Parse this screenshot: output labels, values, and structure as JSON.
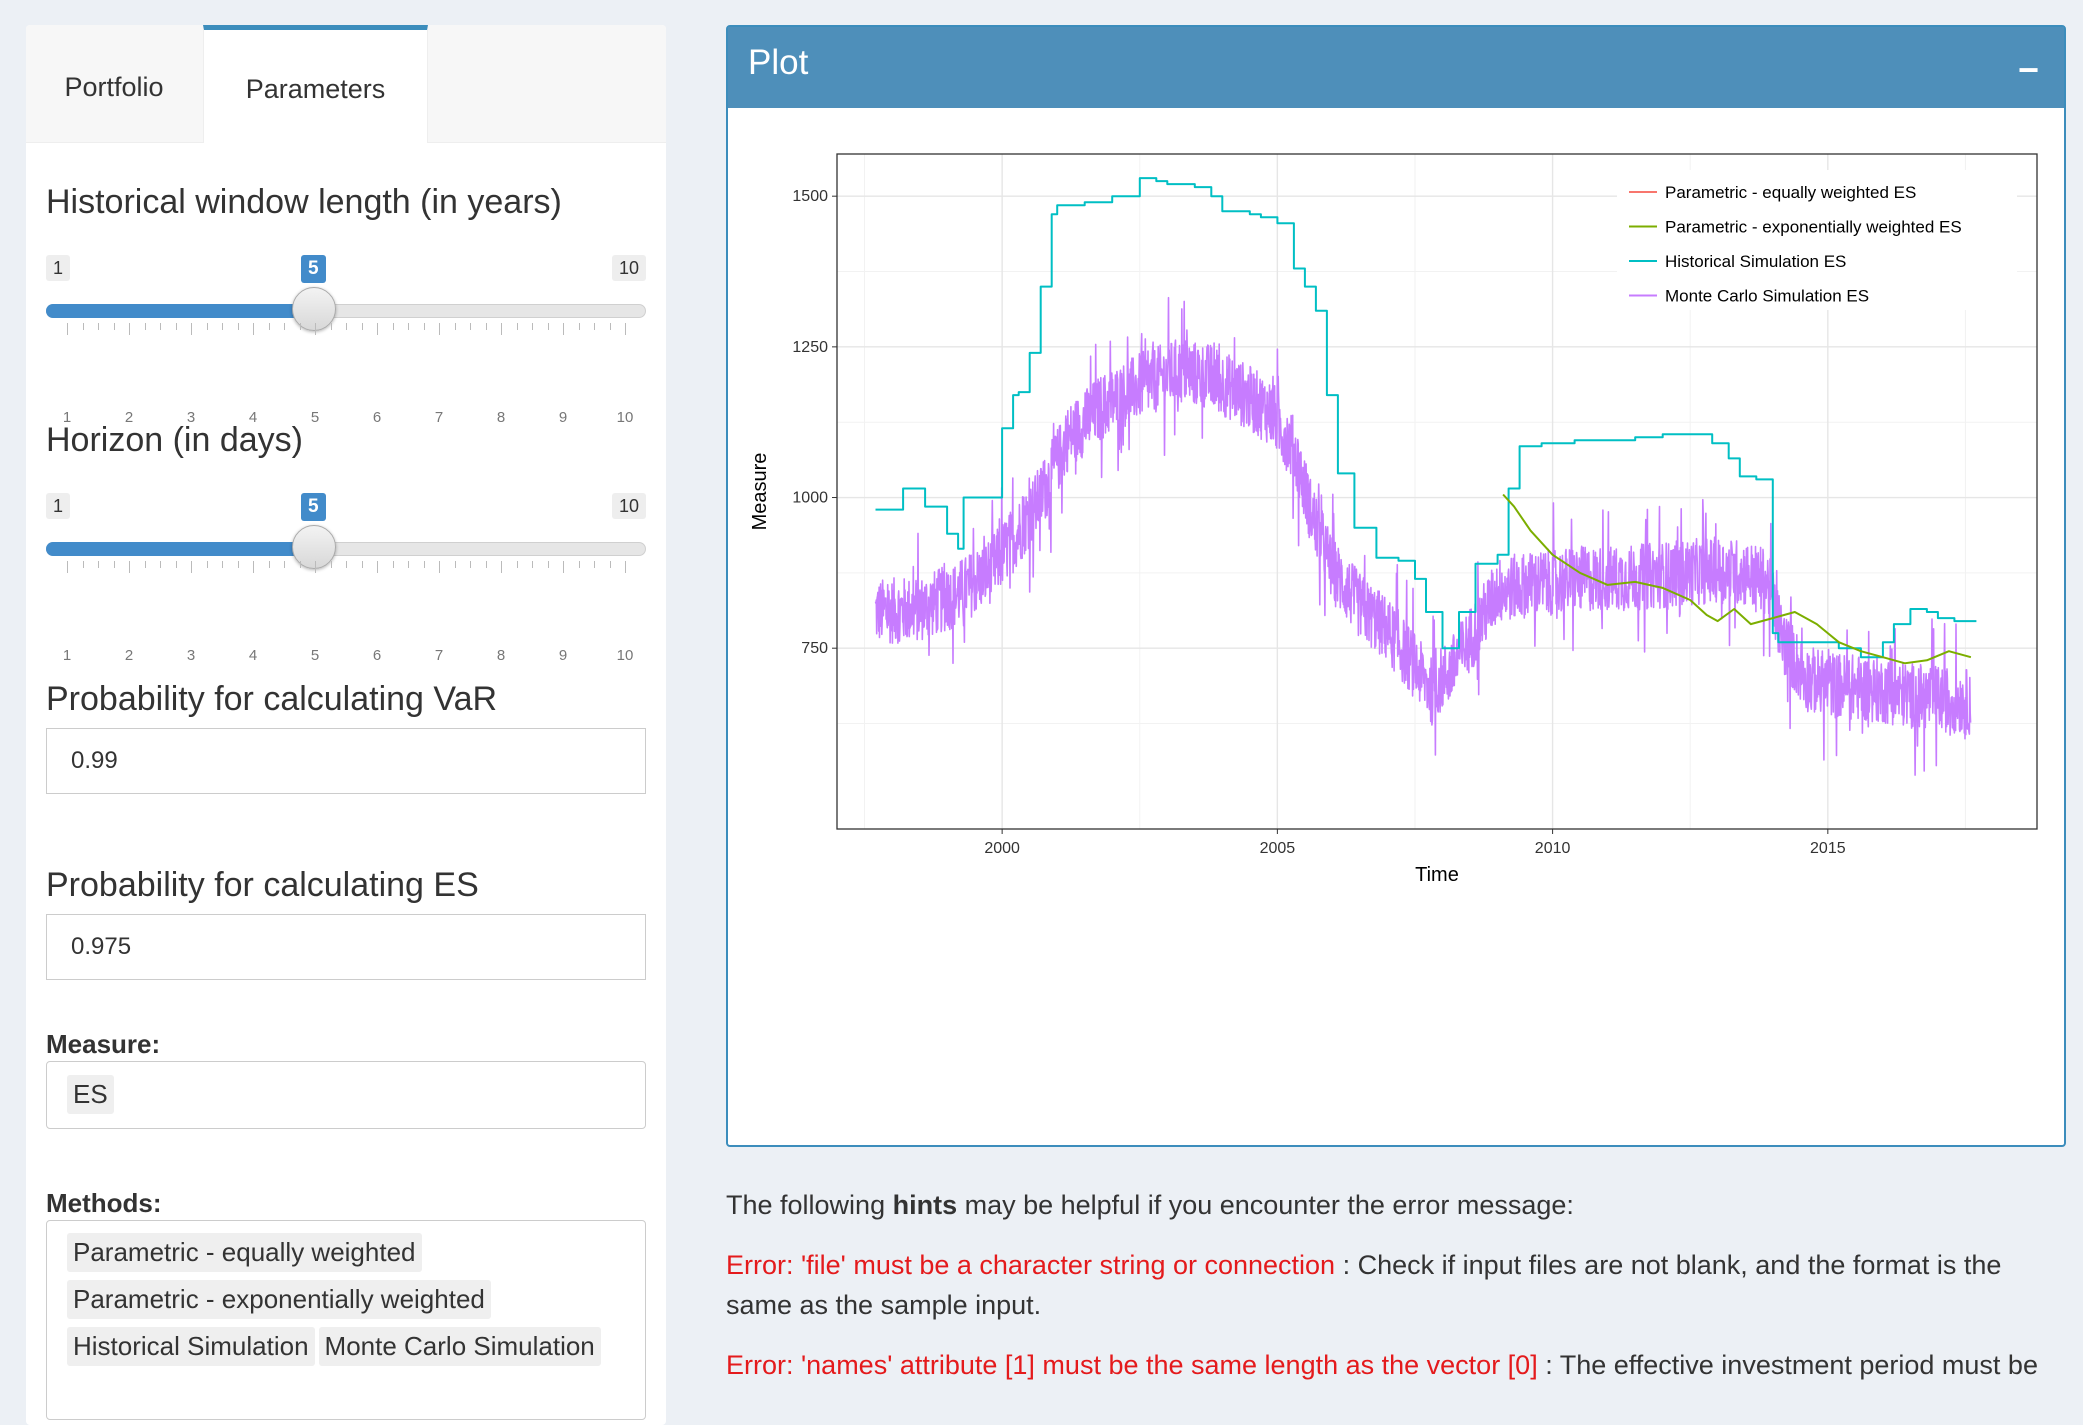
{
  "sidebar": {
    "tabs": [
      {
        "label": "Portfolio",
        "active": false
      },
      {
        "label": "Parameters",
        "active": true
      }
    ],
    "window_slider": {
      "label": "Historical window length (in years)",
      "min": "1",
      "max": "10",
      "value": "5",
      "ticks": [
        "1",
        "2",
        "3",
        "4",
        "5",
        "6",
        "7",
        "8",
        "9",
        "10"
      ]
    },
    "horizon_slider": {
      "label": "Horizon (in days)",
      "min": "1",
      "max": "10",
      "value": "5",
      "ticks": [
        "1",
        "2",
        "3",
        "4",
        "5",
        "6",
        "7",
        "8",
        "9",
        "10"
      ]
    },
    "var_prob": {
      "label": "Probability for calculating VaR",
      "value": "0.99"
    },
    "es_prob": {
      "label": "Probability for calculating ES",
      "value": "0.975"
    },
    "measure": {
      "label": "Measure:",
      "selected": "ES"
    },
    "methods": {
      "label": "Methods:",
      "selected": [
        "Parametric - equally weighted",
        "Parametric - exponentially weighted",
        "Historical Simulation",
        "Monte Carlo Simulation"
      ]
    }
  },
  "plot_box": {
    "title": "Plot",
    "collapse_label": "−"
  },
  "chart_data": {
    "type": "line",
    "xlabel": "Time",
    "ylabel": "Measure",
    "xlim": [
      1997.0,
      2018.8
    ],
    "ylim": [
      450,
      1570
    ],
    "x_ticks": [
      2000,
      2005,
      2010,
      2015
    ],
    "y_ticks": [
      750,
      1000,
      1250,
      1500
    ],
    "grid": true,
    "legend_position": "top-right",
    "series": [
      {
        "name": "Parametric - equally weighted ES",
        "color": "#f8766d",
        "x": [],
        "y": []
      },
      {
        "name": "Parametric - exponentially weighted ES",
        "color": "#7cae00",
        "x": [
          2009.1,
          2009.3,
          2009.6,
          2010.0,
          2010.5,
          2011.0,
          2011.5,
          2012.0,
          2012.5,
          2012.8,
          2013.0,
          2013.3,
          2013.6,
          2014.0,
          2014.4,
          2014.8,
          2015.2,
          2015.6,
          2016.0,
          2016.4,
          2016.8,
          2017.2,
          2017.6
        ],
        "y": [
          1005,
          985,
          945,
          905,
          875,
          855,
          860,
          850,
          830,
          805,
          795,
          815,
          790,
          800,
          810,
          790,
          760,
          745,
          735,
          725,
          730,
          745,
          735
        ]
      },
      {
        "name": "Historical Simulation ES",
        "color": "#00bfc4",
        "x": [
          1997.7,
          1998.2,
          1998.5,
          1998.6,
          1999.0,
          1999.2,
          1999.3,
          1999.5,
          2000.0,
          2000.2,
          2000.3,
          2000.5,
          2000.7,
          2000.9,
          2001.0,
          2001.5,
          2002.0,
          2002.3,
          2002.5,
          2002.8,
          2003.0,
          2003.5,
          2003.8,
          2004.0,
          2004.5,
          2004.7,
          2005.0,
          2005.3,
          2005.5,
          2005.7,
          2005.9,
          2006.1,
          2006.4,
          2006.8,
          2007.2,
          2007.5,
          2007.7,
          2008.0,
          2008.3,
          2008.6,
          2009.0,
          2009.2,
          2009.4,
          2009.8,
          2010.4,
          2011.0,
          2011.5,
          2012.0,
          2012.5,
          2012.9,
          2013.2,
          2013.4,
          2013.7,
          2014.0,
          2014.1,
          2014.4,
          2014.8,
          2015.2,
          2015.6,
          2016.0,
          2016.2,
          2016.5,
          2016.8,
          2017.0,
          2017.3,
          2017.7
        ],
        "y": [
          980,
          1015,
          1015,
          985,
          940,
          915,
          1000,
          1000,
          1115,
          1170,
          1175,
          1240,
          1350,
          1470,
          1485,
          1490,
          1500,
          1500,
          1530,
          1525,
          1520,
          1515,
          1500,
          1475,
          1470,
          1465,
          1455,
          1380,
          1350,
          1310,
          1170,
          1040,
          950,
          900,
          895,
          865,
          810,
          750,
          810,
          890,
          905,
          1015,
          1085,
          1090,
          1095,
          1095,
          1100,
          1105,
          1105,
          1090,
          1065,
          1035,
          1030,
          775,
          760,
          760,
          760,
          750,
          735,
          760,
          790,
          815,
          810,
          800,
          795,
          795
        ]
      },
      {
        "name": "Monte Carlo Simulation ES",
        "color": "#c77cff",
        "x": [
          1997.7,
          1998.5,
          1999.2,
          1999.8,
          2000.2,
          2000.7,
          2001.2,
          2001.8,
          2002.5,
          2003.2,
          2003.8,
          2004.4,
          2004.9,
          2005.3,
          2005.6,
          2006.0,
          2006.5,
          2007.0,
          2007.5,
          2007.8,
          2008.2,
          2008.6,
          2009.0,
          2009.5,
          2010.0,
          2010.6,
          2011.2,
          2011.8,
          2012.4,
          2013.0,
          2013.5,
          2013.9,
          2014.2,
          2014.6,
          2015.0,
          2015.5,
          2016.0,
          2016.6,
          2017.2,
          2017.6
        ],
        "y": [
          810,
          815,
          840,
          880,
          930,
          1000,
          1100,
          1150,
          1185,
          1210,
          1200,
          1170,
          1140,
          1080,
          980,
          880,
          820,
          780,
          720,
          680,
          720,
          780,
          845,
          855,
          860,
          865,
          865,
          870,
          875,
          880,
          875,
          860,
          760,
          700,
          690,
          685,
          680,
          670,
          665,
          660
        ],
        "noise_amplitude": 55
      }
    ]
  },
  "hints": {
    "intro_before": "The following ",
    "intro_bold": "hints",
    "intro_after": " may be helpful if you encounter the error message:",
    "error1": "Error: 'file' must be a character string or connection",
    "error1_text": " : Check if input files are not blank, and the format is the same as the sample input.",
    "error2": "Error: 'names' attribute [1] must be the same length as the vector [0]",
    "error2_text": " : The effective investment period must be"
  }
}
